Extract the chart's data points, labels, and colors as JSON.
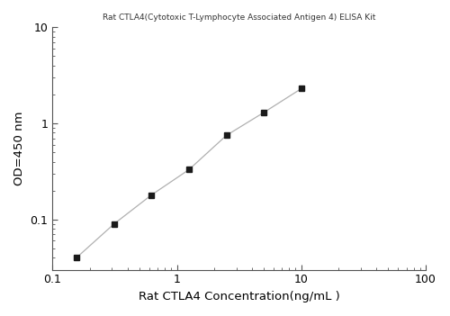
{
  "x": [
    0.156,
    0.313,
    0.625,
    1.25,
    2.5,
    5.0,
    10.0
  ],
  "y": [
    0.04,
    0.09,
    0.18,
    0.33,
    0.75,
    1.3,
    2.3
  ],
  "xlabel": "Rat CTLA4 Concentration(ng/mL )",
  "ylabel": "OD=450 nm",
  "title": "Rat CTLA4(Cytotoxic T-Lymphocyte Associated Antigen 4) ELISA Kit",
  "xlim": [
    0.1,
    100
  ],
  "ylim": [
    0.03,
    10
  ],
  "line_color": "#b0b0b0",
  "marker_color": "#1a1a1a",
  "marker": "s",
  "marker_size": 5,
  "line_width": 0.9,
  "title_fontsize": 6.5,
  "label_fontsize": 9.5,
  "tick_fontsize": 9,
  "background_color": "#ffffff"
}
